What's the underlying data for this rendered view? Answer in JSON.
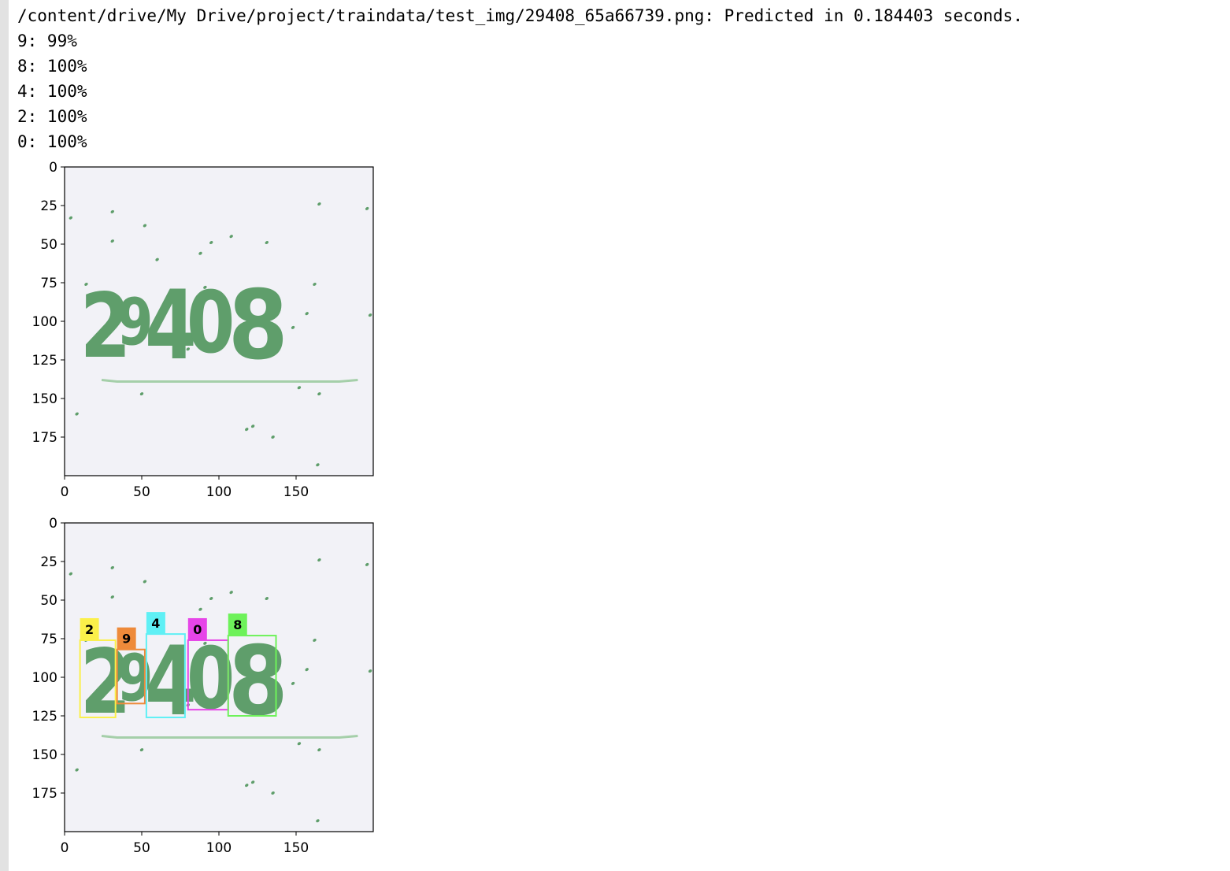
{
  "cell_output": {
    "predicted_line": "/content/drive/My Drive/project/traindata/test_img/29408_65a66739.png: Predicted in 0.184403 seconds.",
    "detections": [
      "9: 99%",
      "8: 100%",
      "4: 100%",
      "2: 100%",
      "0: 100%"
    ]
  },
  "captcha_text": "29408",
  "colors": {
    "image_background": "#f2f2f7",
    "digit_fill": "#5f9e6b",
    "line_color": "#a5cfa9",
    "gutter": "#e2e2e2",
    "box_2": "#fbf04a",
    "box_9": "#ee8a3a",
    "box_4": "#5ff0f5",
    "box_0": "#e645e8",
    "box_8": "#6ef25a"
  },
  "chart_data": [
    {
      "type": "image",
      "content": "raw captcha image",
      "xticks": [
        "0",
        "50",
        "100",
        "150"
      ],
      "yticks": [
        "0",
        "25",
        "50",
        "75",
        "100",
        "125",
        "150",
        "175"
      ],
      "xlim": [
        0,
        200
      ],
      "ylim": [
        200,
        0
      ],
      "captcha_text": "29408"
    },
    {
      "type": "image",
      "content": "captcha image with detection boxes",
      "xticks": [
        "0",
        "50",
        "100",
        "150"
      ],
      "yticks": [
        "0",
        "25",
        "50",
        "75",
        "100",
        "125",
        "150",
        "175"
      ],
      "xlim": [
        0,
        200
      ],
      "ylim": [
        200,
        0
      ],
      "boxes": [
        {
          "label": "2",
          "x0": 10,
          "y0": 76,
          "x1": 33,
          "y1": 126
        },
        {
          "label": "9",
          "x0": 34,
          "y0": 82,
          "x1": 52,
          "y1": 117
        },
        {
          "label": "4",
          "x0": 53,
          "y0": 72,
          "x1": 78,
          "y1": 126
        },
        {
          "label": "0",
          "x0": 80,
          "y0": 76,
          "x1": 106,
          "y1": 121
        },
        {
          "label": "8",
          "x0": 106,
          "y0": 73,
          "x1": 137,
          "y1": 125
        }
      ]
    }
  ]
}
